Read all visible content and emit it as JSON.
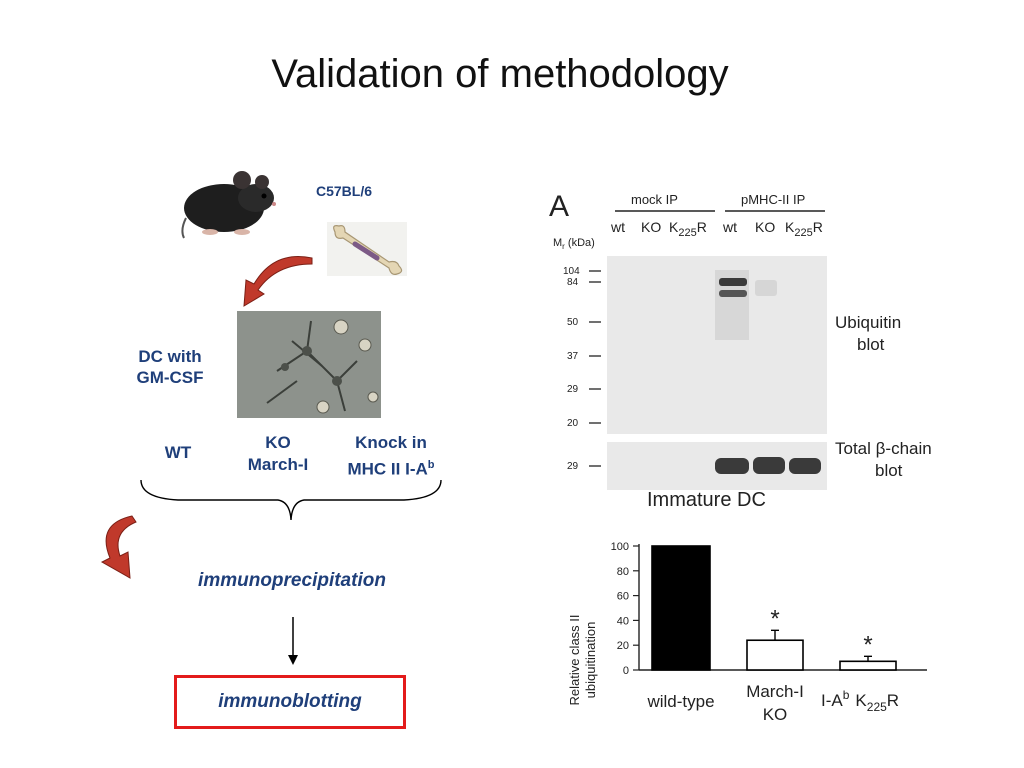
{
  "slide": {
    "title": "Validation of methodology"
  },
  "left": {
    "strain": "C57BL/6",
    "dc_label": [
      "DC with",
      "GM-CSF"
    ],
    "groups": {
      "wt": "WT",
      "ko": [
        "KO",
        "March-I"
      ],
      "knockin_line1": "Knock in",
      "knockin_line2": "MHC II I-A",
      "knockin_sup": "b"
    },
    "step1": "immunoprecipitation",
    "step2": "immunoblotting",
    "colors": {
      "text": "#1f3f7a",
      "box_border": "#e31b1b",
      "arrow": "#c0392b"
    }
  },
  "blot": {
    "panel_letter": "A",
    "mock_ip": "mock IP",
    "pmhc_ip": "pMHC-II IP",
    "lanes": [
      "wt",
      "KO",
      "K",
      "wt",
      "KO",
      "K"
    ],
    "k_sub": "225",
    "k_suffix": "R",
    "mr_label": "M",
    "mr_sub": "r",
    "mr_unit": " (kDa)",
    "markers": [
      "104",
      "84",
      "50",
      "37",
      "29",
      "20"
    ],
    "marker_bottom": "29",
    "ubiquitin_label": [
      "Ubiquitin",
      "blot"
    ],
    "total_label_pre": "Total ",
    "total_label_greek": "β",
    "total_label_post": "-chain",
    "total_label_line2": "blot",
    "caption": "Immature DC"
  },
  "chart_data": {
    "type": "bar",
    "categories": [
      "wild-type",
      "March-I KO",
      "I-Ab K225R"
    ],
    "values": [
      100,
      24,
      7
    ],
    "errors": [
      0,
      8,
      4
    ],
    "significant": [
      false,
      true,
      true
    ],
    "ylabel": [
      "Relative class II",
      "ubiquitination"
    ],
    "ylim": [
      0,
      100
    ],
    "yticks": [
      "0",
      "20",
      "40",
      "60",
      "80",
      "100"
    ],
    "xlabels": {
      "wt": "wild-type",
      "ko_line1": "March-I",
      "ko_line2": "KO",
      "iab": "I-A",
      "iab_sup": "b",
      "k": "K",
      "k_sub": "225",
      "k_suffix": "R"
    },
    "marker": "*",
    "fills": [
      "#000000",
      "#ffffff",
      "#ffffff"
    ]
  }
}
